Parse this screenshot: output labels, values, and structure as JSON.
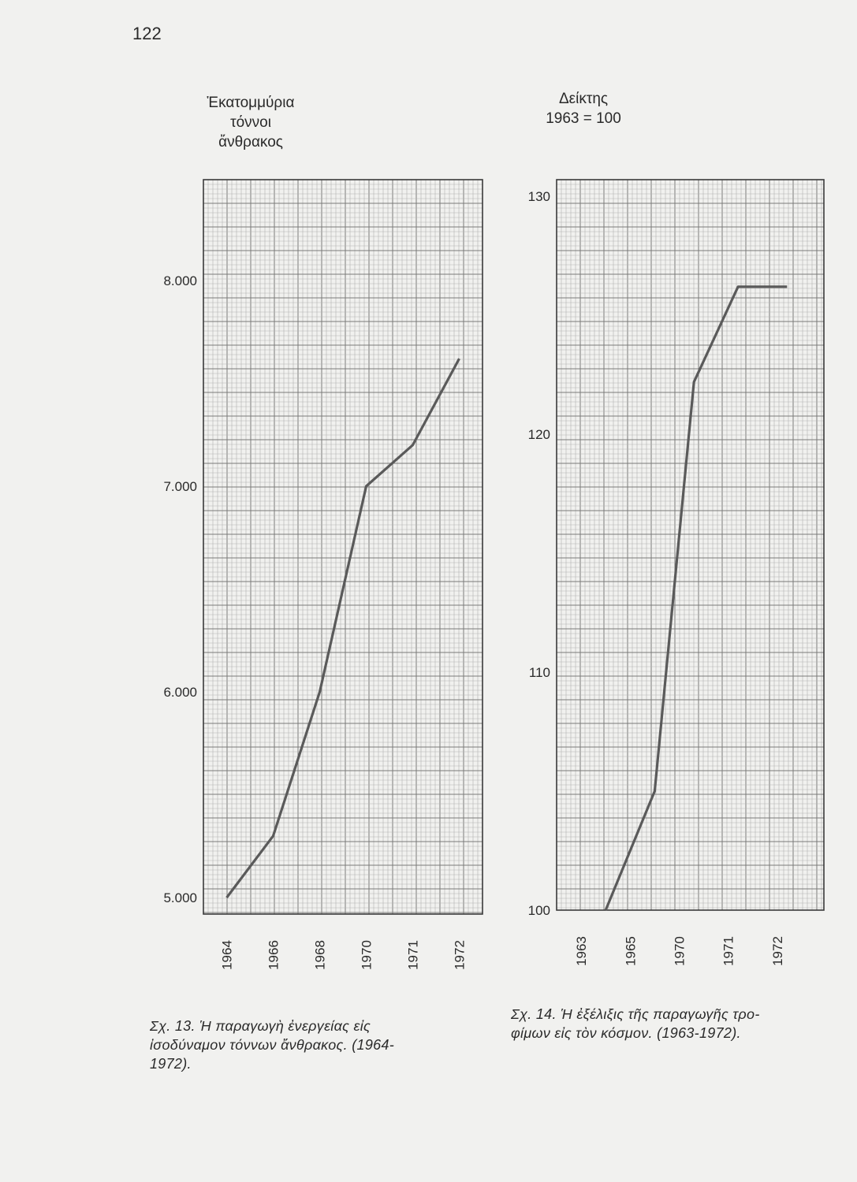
{
  "page_number": "122",
  "chart_data": [
    {
      "type": "line",
      "ylabel_lines": [
        "Ἑκατομμύρια",
        "τόννοι",
        "ἄνθρακος"
      ],
      "x_ticks": [
        "1964",
        "1966",
        "1968",
        "1970",
        "1971",
        "1972"
      ],
      "y_ticks": [
        "5.000",
        "6.000",
        "7.000",
        "8.000"
      ],
      "y_tick_values": [
        5000,
        6000,
        7000,
        8000
      ],
      "ylim": [
        4920,
        8490
      ],
      "series": [
        {
          "points": [
            [
              0.5,
              5000
            ],
            [
              1.5,
              5300
            ],
            [
              2.5,
              6000
            ],
            [
              3.5,
              7000
            ],
            [
              4.5,
              7200
            ],
            [
              5.5,
              7620
            ]
          ]
        }
      ],
      "grid": true,
      "color": "#5a5a5a",
      "caption_lines": [
        "Σχ. 13.  Ἡ παραγωγὴ ἐνεργείας εἰς",
        "ἰσοδύναμον τόννων ἄνθρακος. (1964-",
        "1972)."
      ]
    },
    {
      "type": "line",
      "ylabel_lines": [
        "Δείκτης",
        "1963 = 100"
      ],
      "x_ticks": [
        "1963",
        "1965",
        "1970",
        "1971",
        "1972"
      ],
      "y_ticks": [
        "100",
        "110",
        "120",
        "130"
      ],
      "y_tick_values": [
        100,
        110,
        120,
        130
      ],
      "ylim": [
        100,
        130.7
      ],
      "series": [
        {
          "points": [
            [
              1,
              100
            ],
            [
              2,
              105
            ],
            [
              2.8,
              122.2
            ],
            [
              3.7,
              126.2
            ],
            [
              4.7,
              126.2
            ]
          ]
        }
      ],
      "grid": true,
      "color": "#5a5a5a",
      "caption_lines": [
        "Σχ. 14.  Ἡ ἐξέλιξις τῆς παραγωγῆς τρο-",
        "φίμων εἰς τὸν κόσμον. (1963-1972)."
      ]
    }
  ]
}
